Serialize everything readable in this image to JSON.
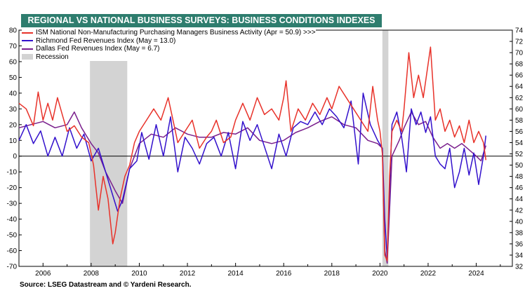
{
  "chart_data": {
    "type": "line",
    "title": "REGIONAL VS NATIONAL BUSINESS SURVEYS: BUSINESS CONDITIONS INDEXES",
    "left_axis": {
      "ylim": [
        -70,
        80
      ],
      "ticks": [
        -70,
        -60,
        -50,
        -40,
        -30,
        -20,
        -10,
        0,
        10,
        20,
        30,
        40,
        50,
        60,
        70,
        80
      ]
    },
    "right_axis": {
      "ylim": [
        32,
        74
      ],
      "ticks": [
        32,
        34,
        36,
        38,
        40,
        42,
        44,
        46,
        48,
        50,
        52,
        54,
        56,
        58,
        60,
        62,
        64,
        66,
        68,
        70,
        72,
        74
      ]
    },
    "x_axis": {
      "xlim": [
        2005,
        2025.5
      ],
      "ticks": [
        2006,
        2008,
        2010,
        2012,
        2014,
        2016,
        2018,
        2020,
        2022,
        2024
      ]
    },
    "zero_line": 0,
    "recessions": [
      [
        2007.95,
        2009.5
      ],
      [
        2020.1,
        2020.35
      ]
    ],
    "series": [
      {
        "name": "ISM National Non-Manufacturing Purchasing Managers Business Activity (Apr = 50.9) >>>",
        "color": "#e8322a",
        "axis": "right",
        "points": [
          [
            2005,
            61
          ],
          [
            2005.3,
            60
          ],
          [
            2005.6,
            57
          ],
          [
            2005.8,
            63
          ],
          [
            2006,
            58
          ],
          [
            2006.2,
            61
          ],
          [
            2006.4,
            58
          ],
          [
            2006.6,
            62
          ],
          [
            2006.8,
            59
          ],
          [
            2007,
            56
          ],
          [
            2007.3,
            57
          ],
          [
            2007.6,
            55
          ],
          [
            2007.9,
            54
          ],
          [
            2008,
            52
          ],
          [
            2008.1,
            50
          ],
          [
            2008.2,
            46
          ],
          [
            2008.3,
            42
          ],
          [
            2008.5,
            48
          ],
          [
            2008.7,
            44
          ],
          [
            2008.9,
            36
          ],
          [
            2009,
            38
          ],
          [
            2009.2,
            44
          ],
          [
            2009.4,
            48
          ],
          [
            2009.6,
            50
          ],
          [
            2009.8,
            54
          ],
          [
            2010,
            56
          ],
          [
            2010.3,
            58
          ],
          [
            2010.6,
            60
          ],
          [
            2010.9,
            58
          ],
          [
            2011.2,
            62
          ],
          [
            2011.4,
            58
          ],
          [
            2011.6,
            54
          ],
          [
            2011.9,
            56
          ],
          [
            2012.2,
            58
          ],
          [
            2012.5,
            53
          ],
          [
            2012.8,
            55
          ],
          [
            2013,
            56
          ],
          [
            2013.2,
            58
          ],
          [
            2013.5,
            54
          ],
          [
            2013.8,
            55
          ],
          [
            2014,
            58
          ],
          [
            2014.3,
            61
          ],
          [
            2014.6,
            58
          ],
          [
            2014.9,
            62
          ],
          [
            2015.2,
            59
          ],
          [
            2015.5,
            60
          ],
          [
            2015.8,
            58
          ],
          [
            2016,
            62
          ],
          [
            2016.1,
            65
          ],
          [
            2016.3,
            56
          ],
          [
            2016.6,
            60
          ],
          [
            2016.9,
            58
          ],
          [
            2017.2,
            61
          ],
          [
            2017.5,
            59
          ],
          [
            2017.8,
            62
          ],
          [
            2018,
            60
          ],
          [
            2018.3,
            64
          ],
          [
            2018.6,
            62
          ],
          [
            2018.9,
            60
          ],
          [
            2019.2,
            58
          ],
          [
            2019.5,
            56
          ],
          [
            2019.7,
            64
          ],
          [
            2019.9,
            58
          ],
          [
            2020,
            56
          ],
          [
            2020.1,
            52
          ],
          [
            2020.2,
            34
          ],
          [
            2020.3,
            33
          ],
          [
            2020.4,
            48
          ],
          [
            2020.5,
            56
          ],
          [
            2020.7,
            58
          ],
          [
            2020.9,
            56
          ],
          [
            2021,
            60
          ],
          [
            2021.2,
            70
          ],
          [
            2021.4,
            62
          ],
          [
            2021.6,
            66
          ],
          [
            2021.8,
            62
          ],
          [
            2022,
            68
          ],
          [
            2022.1,
            71
          ],
          [
            2022.3,
            58
          ],
          [
            2022.5,
            60
          ],
          [
            2022.7,
            56
          ],
          [
            2022.9,
            58
          ],
          [
            2023.1,
            55
          ],
          [
            2023.3,
            57
          ],
          [
            2023.5,
            54
          ],
          [
            2023.7,
            58
          ],
          [
            2023.9,
            54
          ],
          [
            2024.1,
            56
          ],
          [
            2024.3,
            54
          ],
          [
            2024.4,
            50.9
          ]
        ]
      },
      {
        "name": "Richmond Fed Revenues Index (May = 13.0)",
        "color": "#3311cc",
        "axis": "left",
        "points": [
          [
            2005,
            10
          ],
          [
            2005.3,
            20
          ],
          [
            2005.6,
            8
          ],
          [
            2005.9,
            16
          ],
          [
            2006.2,
            0
          ],
          [
            2006.5,
            12
          ],
          [
            2006.8,
            0
          ],
          [
            2007.1,
            18
          ],
          [
            2007.4,
            5
          ],
          [
            2007.7,
            14
          ],
          [
            2008,
            -3
          ],
          [
            2008.3,
            5
          ],
          [
            2008.6,
            -10
          ],
          [
            2008.9,
            -25
          ],
          [
            2009.1,
            -35
          ],
          [
            2009.3,
            -28
          ],
          [
            2009.6,
            -8
          ],
          [
            2009.9,
            -3
          ],
          [
            2010.1,
            15
          ],
          [
            2010.4,
            -2
          ],
          [
            2010.7,
            20
          ],
          [
            2011,
            0
          ],
          [
            2011.3,
            25
          ],
          [
            2011.6,
            -10
          ],
          [
            2011.9,
            12
          ],
          [
            2012.2,
            5
          ],
          [
            2012.5,
            -5
          ],
          [
            2012.8,
            8
          ],
          [
            2013.1,
            12
          ],
          [
            2013.4,
            0
          ],
          [
            2013.7,
            15
          ],
          [
            2014,
            -8
          ],
          [
            2014.3,
            22
          ],
          [
            2014.6,
            10
          ],
          [
            2014.9,
            20
          ],
          [
            2015.2,
            6
          ],
          [
            2015.5,
            -8
          ],
          [
            2015.8,
            14
          ],
          [
            2016.1,
            0
          ],
          [
            2016.4,
            18
          ],
          [
            2016.7,
            22
          ],
          [
            2017,
            20
          ],
          [
            2017.3,
            28
          ],
          [
            2017.6,
            20
          ],
          [
            2017.9,
            30
          ],
          [
            2018.2,
            25
          ],
          [
            2018.5,
            18
          ],
          [
            2018.8,
            35
          ],
          [
            2019.1,
            -5
          ],
          [
            2019.3,
            40
          ],
          [
            2019.6,
            20
          ],
          [
            2019.9,
            10
          ],
          [
            2020.1,
            5
          ],
          [
            2020.2,
            -40
          ],
          [
            2020.3,
            -65
          ],
          [
            2020.5,
            20
          ],
          [
            2020.7,
            28
          ],
          [
            2020.9,
            12
          ],
          [
            2021.1,
            -10
          ],
          [
            2021.3,
            30
          ],
          [
            2021.5,
            20
          ],
          [
            2021.7,
            28
          ],
          [
            2021.9,
            15
          ],
          [
            2022.1,
            25
          ],
          [
            2022.3,
            0
          ],
          [
            2022.5,
            -5
          ],
          [
            2022.7,
            -8
          ],
          [
            2022.9,
            5
          ],
          [
            2023.1,
            -20
          ],
          [
            2023.3,
            -10
          ],
          [
            2023.5,
            5
          ],
          [
            2023.7,
            -12
          ],
          [
            2023.9,
            2
          ],
          [
            2024.1,
            -18
          ],
          [
            2024.3,
            0
          ],
          [
            2024.4,
            13
          ]
        ]
      },
      {
        "name": "Dallas Fed Revenues Index (May = 6.7)",
        "color": "#7a1f8c",
        "axis": "left",
        "points": [
          [
            2005,
            18
          ],
          [
            2005.5,
            20
          ],
          [
            2006,
            22
          ],
          [
            2006.5,
            18
          ],
          [
            2007,
            20
          ],
          [
            2007.3,
            28
          ],
          [
            2007.6,
            18
          ],
          [
            2008,
            8
          ],
          [
            2008.3,
            2
          ],
          [
            2008.6,
            -10
          ],
          [
            2009,
            -22
          ],
          [
            2009.3,
            -30
          ],
          [
            2009.6,
            -8
          ],
          [
            2010,
            8
          ],
          [
            2010.5,
            14
          ],
          [
            2011,
            12
          ],
          [
            2011.5,
            18
          ],
          [
            2012,
            14
          ],
          [
            2012.5,
            12
          ],
          [
            2013,
            12
          ],
          [
            2013.5,
            15
          ],
          [
            2014,
            14
          ],
          [
            2014.5,
            18
          ],
          [
            2015,
            10
          ],
          [
            2015.5,
            8
          ],
          [
            2016,
            10
          ],
          [
            2016.5,
            15
          ],
          [
            2017,
            18
          ],
          [
            2017.5,
            22
          ],
          [
            2018,
            25
          ],
          [
            2018.5,
            20
          ],
          [
            2019,
            18
          ],
          [
            2019.5,
            10
          ],
          [
            2019.9,
            8
          ],
          [
            2020.1,
            5
          ],
          [
            2020.2,
            -60
          ],
          [
            2020.3,
            -68
          ],
          [
            2020.5,
            0
          ],
          [
            2020.8,
            10
          ],
          [
            2021,
            18
          ],
          [
            2021.3,
            28
          ],
          [
            2021.6,
            20
          ],
          [
            2021.9,
            22
          ],
          [
            2022.2,
            12
          ],
          [
            2022.5,
            5
          ],
          [
            2022.8,
            8
          ],
          [
            2023.1,
            5
          ],
          [
            2023.4,
            8
          ],
          [
            2023.7,
            4
          ],
          [
            2024,
            0
          ],
          [
            2024.2,
            -3
          ],
          [
            2024.4,
            6.7
          ]
        ]
      }
    ],
    "legend_recession": "Recession",
    "source": "Source: LSEG Datastream and © Yardeni Research."
  }
}
